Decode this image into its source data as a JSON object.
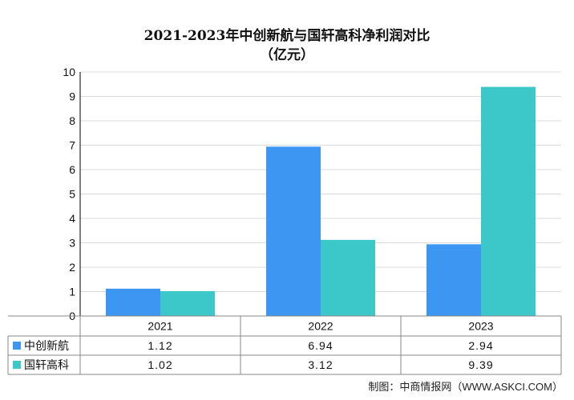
{
  "title_line1": "2021-2023年中创新航与国轩高科净利润对比",
  "title_line2": "（亿元）",
  "footer": "制图：中商情报网（WWW.ASKCI.COM）",
  "colors": {
    "series1": "#3d97f2",
    "series2": "#3cc8c8",
    "grid": "#d9d9d9",
    "axis": "#000000"
  },
  "chart_data": {
    "type": "bar",
    "categories": [
      "2021",
      "2022",
      "2023"
    ],
    "series": [
      {
        "name": "中创新航",
        "values": [
          1.12,
          6.94,
          2.94
        ],
        "labels": [
          "1.12",
          "6.94",
          "2.94"
        ]
      },
      {
        "name": "国轩高科",
        "values": [
          1.02,
          3.12,
          9.39
        ],
        "labels": [
          "1.02",
          "3.12",
          "9.39"
        ]
      }
    ],
    "ylim": [
      0,
      10
    ],
    "yticks": [
      0,
      1,
      2,
      3,
      4,
      5,
      6,
      7,
      8,
      9,
      10
    ],
    "grid": true,
    "legend": "data-table"
  }
}
